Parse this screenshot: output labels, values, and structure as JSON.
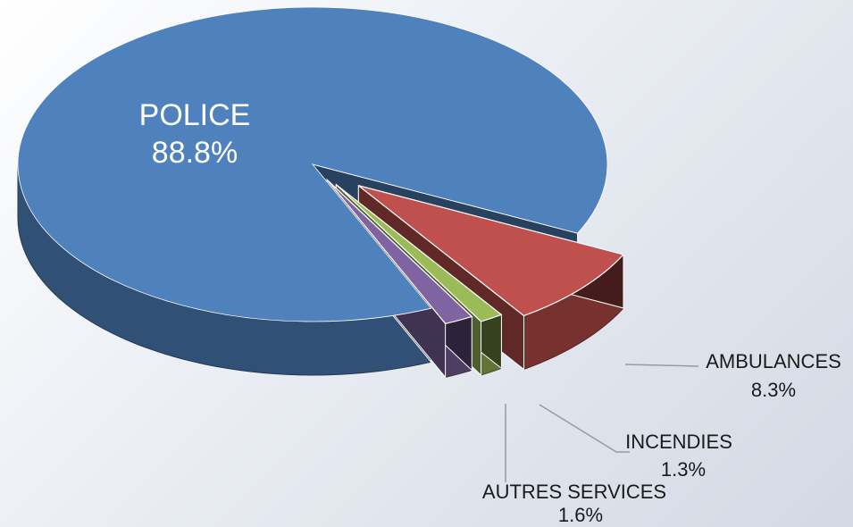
{
  "chart_data": {
    "type": "pie",
    "title": "",
    "categories": [
      "POLICE",
      "AMBULANCES",
      "INCENDIES",
      "AUTRES SERVICES"
    ],
    "values": [
      88.8,
      8.3,
      1.3,
      1.6
    ],
    "labels": [
      {
        "name": "POLICE",
        "pct": "88.8%"
      },
      {
        "name": "AMBULANCES",
        "pct": "8.3%"
      },
      {
        "name": "INCENDIES",
        "pct": "1.3%"
      },
      {
        "name": "AUTRES SERVICES",
        "pct": "1.6%"
      }
    ],
    "colors": {
      "POLICE": "#4f81bd",
      "AMBULANCES": "#c0504d",
      "INCENDIES": "#9bbb59",
      "AUTRES SERVICES": "#8064a2"
    },
    "style": "3d-exploded",
    "legend": "none"
  }
}
